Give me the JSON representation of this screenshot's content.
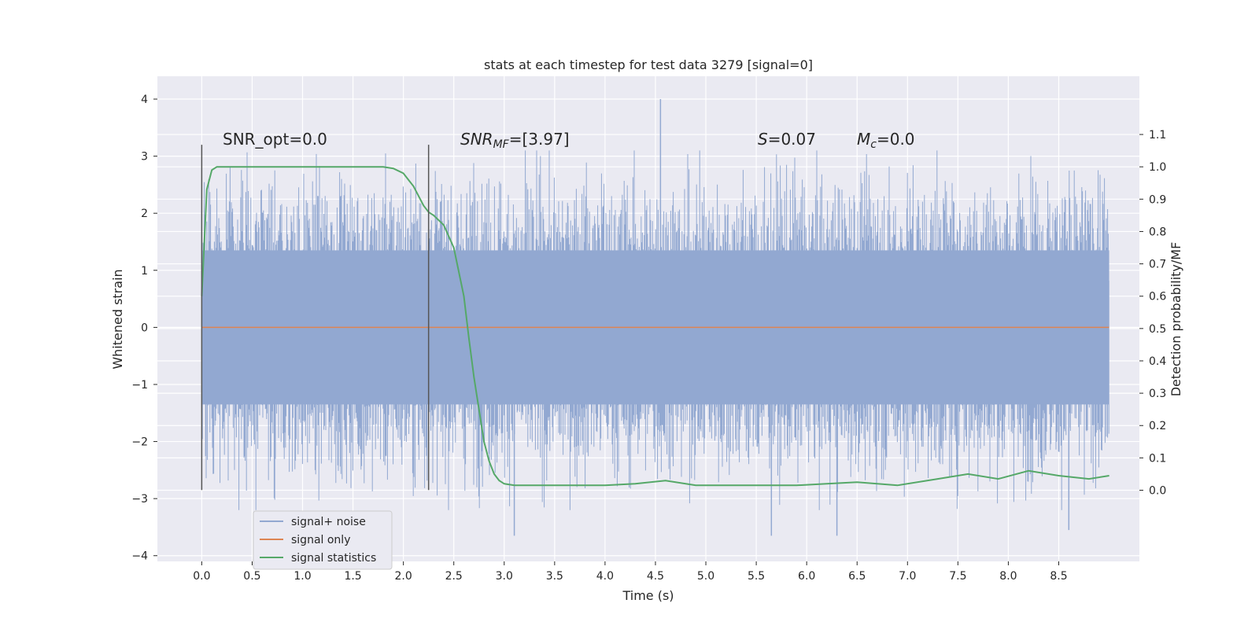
{
  "chart_data": {
    "type": "line",
    "title": "stats at each timestep for test data 3279 [signal=0]",
    "xlabel": "Time (s)",
    "ylabel": "Whitened strain",
    "y2label": "Detection probability/MF",
    "xlim": [
      -0.44,
      9.3
    ],
    "ylim": [
      -4.1,
      4.4
    ],
    "y2lim": [
      -0.22,
      1.28
    ],
    "xticks": [
      "0.0",
      "0.5",
      "1.0",
      "1.5",
      "2.0",
      "2.5",
      "3.0",
      "3.5",
      "4.0",
      "4.5",
      "5.0",
      "5.5",
      "6.0",
      "6.5",
      "7.0",
      "7.5",
      "8.0",
      "8.5"
    ],
    "yticks": [
      "4",
      "3",
      "2",
      "1",
      "0",
      "−1",
      "−2",
      "−3",
      "−4"
    ],
    "y2ticks": [
      "1.1",
      "1.0",
      "0.9",
      "0.8",
      "0.7",
      "0.6",
      "0.5",
      "0.4",
      "0.3",
      "0.2",
      "0.1",
      "0.0"
    ],
    "grid": true,
    "legend_position": "lower-left",
    "annotations": {
      "snr_opt": "SNR_opt=0.0",
      "snr_mf_sym": "SNR",
      "snr_mf_sub": "MF",
      "snr_mf_val": "=[3.97]",
      "s_sym": "S",
      "s_val": "=0.07",
      "mc_sym": "M",
      "mc_sub": "c",
      "mc_val": "=0.0"
    },
    "vlines": [
      {
        "x": 0.0,
        "ymin": -2.85,
        "ymax": 3.2
      },
      {
        "x": 2.25,
        "ymin": -2.85,
        "ymax": 3.2
      }
    ],
    "series": [
      {
        "name": "signal+ noise",
        "color": "#92a8d1",
        "kind": "noise",
        "x_range": [
          0,
          9.0
        ],
        "envelope": 2.0,
        "extremes": [
          {
            "x": 4.55,
            "y": 4.0
          },
          {
            "x": 3.1,
            "y": -3.65
          },
          {
            "x": 5.65,
            "y": -3.65
          },
          {
            "x": 6.3,
            "y": -3.65
          },
          {
            "x": 8.6,
            "y": -3.55
          }
        ]
      },
      {
        "name": "signal only",
        "color": "#dd8452",
        "x": [
          0,
          9.0
        ],
        "values": [
          0,
          0
        ]
      },
      {
        "name": "signal statistics",
        "color": "#55a868",
        "axis": "right",
        "x": [
          0.0,
          0.05,
          0.1,
          0.15,
          0.2,
          0.3,
          0.5,
          1.0,
          1.5,
          1.8,
          1.9,
          2.0,
          2.05,
          2.1,
          2.15,
          2.2,
          2.25,
          2.3,
          2.4,
          2.5,
          2.6,
          2.65,
          2.7,
          2.75,
          2.8,
          2.85,
          2.9,
          2.95,
          3.0,
          3.1,
          3.2,
          3.4,
          3.6,
          3.8,
          4.0,
          4.3,
          4.6,
          4.9,
          5.2,
          5.6,
          5.9,
          6.2,
          6.5,
          6.9,
          7.3,
          7.6,
          7.9,
          8.2,
          8.5,
          8.8,
          9.0
        ],
        "values": [
          0.6,
          0.93,
          0.99,
          1.0,
          1.0,
          1.0,
          1.0,
          1.0,
          1.0,
          1.0,
          0.995,
          0.98,
          0.96,
          0.94,
          0.91,
          0.88,
          0.86,
          0.85,
          0.82,
          0.75,
          0.6,
          0.47,
          0.35,
          0.25,
          0.15,
          0.09,
          0.05,
          0.03,
          0.02,
          0.015,
          0.015,
          0.015,
          0.015,
          0.015,
          0.015,
          0.02,
          0.03,
          0.015,
          0.015,
          0.015,
          0.015,
          0.02,
          0.025,
          0.015,
          0.035,
          0.05,
          0.035,
          0.06,
          0.045,
          0.035,
          0.045
        ]
      }
    ]
  }
}
